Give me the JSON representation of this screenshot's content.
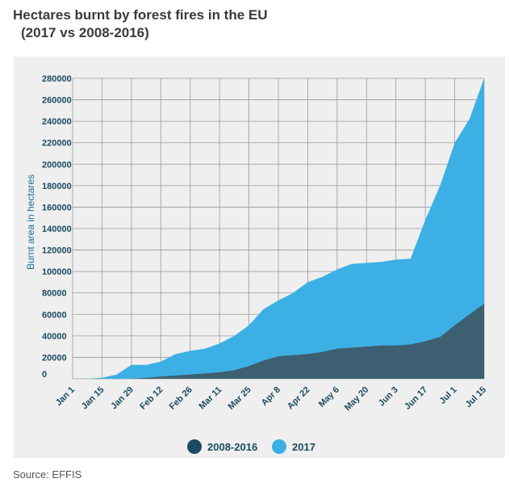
{
  "title_line1": "Hectares burnt by forest fires in the EU",
  "title_line2": "(2017 vs 2008-2016)",
  "source": "Source: EFFIS",
  "colors": {
    "series_2017": "#3cb0e4",
    "series_avg": "#3d5f72",
    "avg_legend": "#1b4a61",
    "axis_text": "#1b4a61",
    "grid": "#9a9a9a",
    "panel": "#efefef"
  },
  "chart_data": {
    "type": "area",
    "ylabel": "Burnt area in hectares",
    "ylim": [
      0,
      280000
    ],
    "yticks": [
      0,
      20000,
      40000,
      60000,
      80000,
      100000,
      120000,
      140000,
      160000,
      180000,
      200000,
      220000,
      240000,
      260000,
      280000
    ],
    "xtick_labels": [
      "Jan 1",
      "Jan 15",
      "Jan 29",
      "Feb 12",
      "Feb 26",
      "Mar 11",
      "Mar 25",
      "Apr 8",
      "Apr 22",
      "May 6",
      "May 20",
      "Jun 3",
      "Jun 17",
      "Jul 1",
      "Jul 15"
    ],
    "x": [
      "Jan 1",
      "Jan 8",
      "Jan 15",
      "Jan 22",
      "Jan 29",
      "Feb 5",
      "Feb 12",
      "Feb 19",
      "Feb 26",
      "Mar 4",
      "Mar 11",
      "Mar 18",
      "Mar 25",
      "Apr 1",
      "Apr 8",
      "Apr 15",
      "Apr 22",
      "Apr 29",
      "May 6",
      "May 13",
      "May 20",
      "May 27",
      "Jun 3",
      "Jun 10",
      "Jun 17",
      "Jun 24",
      "Jul 1",
      "Jul 8",
      "Jul 15"
    ],
    "series": [
      {
        "name": "2017",
        "values": [
          0,
          0,
          1000,
          4000,
          13000,
          13000,
          16000,
          23000,
          26000,
          28000,
          33000,
          40000,
          50000,
          65000,
          73000,
          80000,
          90000,
          95000,
          102000,
          107000,
          108000,
          109000,
          111000,
          112000,
          148000,
          180000,
          220000,
          242000,
          280000
        ]
      },
      {
        "name": "2008-2016",
        "values": [
          0,
          0,
          0,
          0,
          0,
          1000,
          2000,
          3000,
          4000,
          5000,
          6000,
          8000,
          12000,
          17000,
          21000,
          22000,
          23000,
          25000,
          28000,
          29000,
          30000,
          31000,
          31000,
          32000,
          35000,
          39000,
          50000,
          60000,
          70000
        ]
      }
    ],
    "legend": [
      "2008-2016",
      "2017"
    ],
    "legend_position": "bottom-center",
    "grid": true
  }
}
